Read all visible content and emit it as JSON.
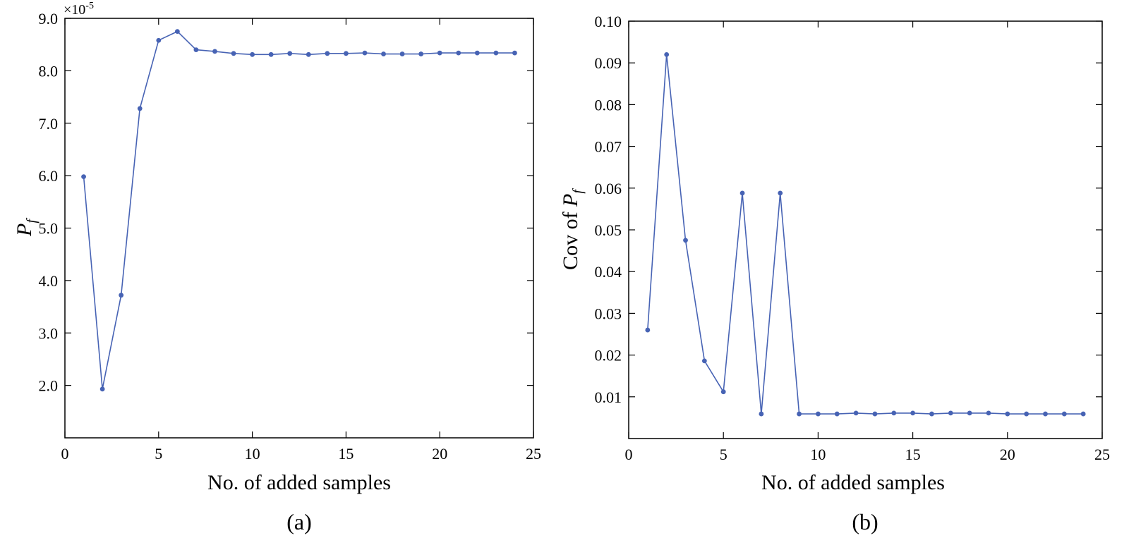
{
  "chart_data": [
    {
      "type": "line",
      "caption": "(a)",
      "xlabel": "No. of added samples",
      "ylabel": {
        "main": "P",
        "sub": "f"
      },
      "scale_note": {
        "base": "×10",
        "exp": "-5"
      },
      "xlim": [
        0,
        25
      ],
      "ylim": [
        1.0,
        9.0
      ],
      "xticks": [
        0,
        5,
        10,
        15,
        20,
        25
      ],
      "xtick_labels": [
        "0",
        "5",
        "10",
        "15",
        "20",
        "25"
      ],
      "yticks": [
        2.0,
        3.0,
        4.0,
        5.0,
        6.0,
        7.0,
        8.0,
        9.0
      ],
      "ytick_labels": [
        "2.0",
        "3.0",
        "4.0",
        "5.0",
        "6.0",
        "7.0",
        "8.0",
        "9.0"
      ],
      "grid": false,
      "color": "#4763b4",
      "series": [
        {
          "x": [
            1,
            2,
            3,
            4,
            5,
            6,
            7,
            8,
            9,
            10,
            11,
            12,
            13,
            14,
            15,
            16,
            17,
            18,
            19,
            20,
            21,
            22,
            23,
            24
          ],
          "y": [
            5.98,
            1.93,
            3.72,
            7.28,
            8.58,
            8.75,
            8.4,
            8.37,
            8.33,
            8.31,
            8.31,
            8.33,
            8.31,
            8.33,
            8.33,
            8.34,
            8.32,
            8.32,
            8.32,
            8.34,
            8.34,
            8.34,
            8.34,
            8.34
          ]
        }
      ]
    },
    {
      "type": "line",
      "caption": "(b)",
      "xlabel": "No. of added samples",
      "ylabel": {
        "prefix": "Cov of ",
        "main": "P",
        "sub": "f"
      },
      "xlim": [
        0,
        25
      ],
      "ylim": [
        0.0,
        0.1
      ],
      "xticks": [
        0,
        5,
        10,
        15,
        20,
        25
      ],
      "xtick_labels": [
        "0",
        "5",
        "10",
        "15",
        "20",
        "25"
      ],
      "yticks": [
        0.01,
        0.02,
        0.03,
        0.04,
        0.05,
        0.06,
        0.07,
        0.08,
        0.09,
        0.1
      ],
      "ytick_labels": [
        "0.01",
        "0.02",
        "0.03",
        "0.04",
        "0.05",
        "0.06",
        "0.07",
        "0.08",
        "0.09",
        "0.10"
      ],
      "grid": false,
      "color": "#4763b4",
      "series": [
        {
          "x": [
            1,
            2,
            3,
            4,
            5,
            6,
            7,
            8,
            9,
            10,
            11,
            12,
            13,
            14,
            15,
            16,
            17,
            18,
            19,
            20,
            21,
            22,
            23,
            24
          ],
          "y": [
            0.026,
            0.092,
            0.0475,
            0.0186,
            0.0112,
            0.0588,
            0.0059,
            0.0588,
            0.0059,
            0.0059,
            0.0059,
            0.0061,
            0.0059,
            0.0061,
            0.0061,
            0.0059,
            0.0061,
            0.0061,
            0.0061,
            0.0059,
            0.0059,
            0.0059,
            0.0059,
            0.0059
          ]
        }
      ]
    }
  ]
}
